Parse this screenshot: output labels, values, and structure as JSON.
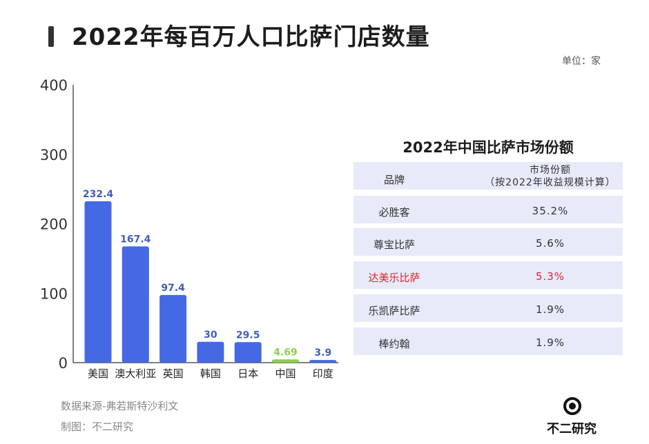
{
  "header": {
    "title": "2022年每百万人口比萨门店数量",
    "unit": "单位：家"
  },
  "chart_data": {
    "type": "bar",
    "categories": [
      "美国",
      "澳大利亚",
      "英国",
      "韩国",
      "日本",
      "中国",
      "印度"
    ],
    "values": [
      232.4,
      167.4,
      97.4,
      30,
      29.5,
      4.69,
      3.9
    ],
    "value_labels": [
      "232.4",
      "167.4",
      "97.4",
      "30",
      "29.5",
      "4.69",
      "3.9"
    ],
    "ylim": [
      0,
      400
    ],
    "yticks": [
      0,
      100,
      200,
      300,
      400
    ],
    "ytick_labels": [
      "0",
      "100",
      "200",
      "300",
      "400"
    ],
    "highlight_category": "中国",
    "colors": {
      "bar": "#4469e2",
      "highlight": "#8dcf4a",
      "label": "#3f5fbf",
      "axis": "#555555"
    },
    "grid": false
  },
  "table": {
    "title": "2022年中国比萨市场份额",
    "header": {
      "brand": "品牌",
      "share_line1": "市场份额",
      "share_line2": "（按2022年收益规模计算）"
    },
    "rows": [
      {
        "brand": "必胜客",
        "share": "35.2%"
      },
      {
        "brand": "尊宝比萨",
        "share": "5.6%"
      },
      {
        "brand": "达美乐比萨",
        "share": "5.3%"
      },
      {
        "brand": "乐凯萨比萨",
        "share": "1.9%"
      },
      {
        "brand": "棒约翰",
        "share": "1.9%"
      }
    ],
    "highlight_color": "#d9252c"
  },
  "footer": {
    "source": "数据来源-弗若斯特沙利文",
    "made_by": "制图：不二研究"
  },
  "logo": {
    "text": "不二研究",
    "icon": "eye-logo-icon"
  }
}
